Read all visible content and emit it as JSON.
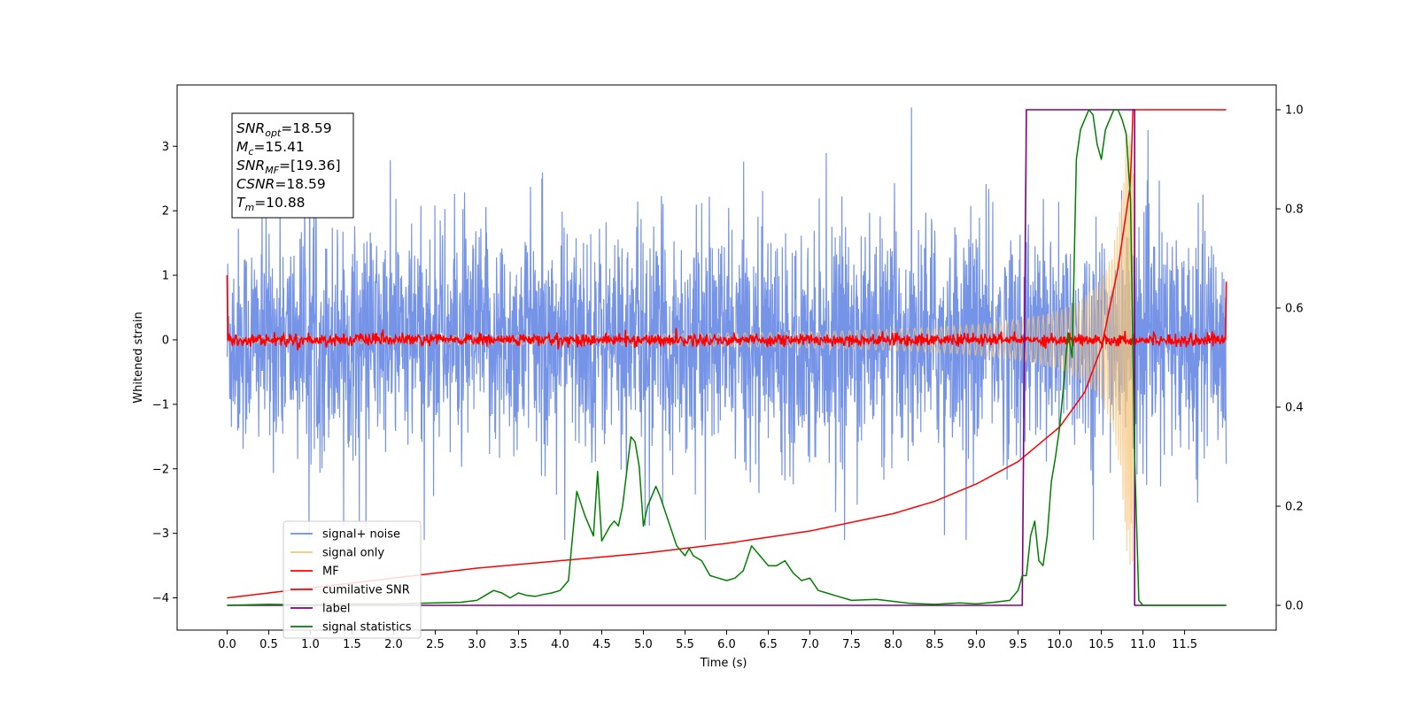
{
  "chart_data": {
    "type": "line",
    "xlabel": "Time (s)",
    "ylabel_left": "Whitened strain",
    "ylabel_right": "",
    "xlim": [
      -0.6,
      12.6
    ],
    "ylim_left": [
      -4.5,
      3.95
    ],
    "ylim_right": [
      -0.05,
      1.05
    ],
    "x_ticks": [
      "0.0",
      "0.5",
      "1.0",
      "1.5",
      "2.0",
      "2.5",
      "3.0",
      "3.5",
      "4.0",
      "4.5",
      "5.0",
      "5.5",
      "6.0",
      "6.5",
      "7.0",
      "7.5",
      "8.0",
      "8.5",
      "9.0",
      "9.5",
      "10.0",
      "10.5",
      "11.0",
      "11.5"
    ],
    "x_tick_values": [
      0,
      0.5,
      1,
      1.5,
      2,
      2.5,
      3,
      3.5,
      4,
      4.5,
      5,
      5.5,
      6,
      6.5,
      7,
      7.5,
      8,
      8.5,
      9,
      9.5,
      10,
      10.5,
      11,
      11.5
    ],
    "y_ticks_left": [
      -4,
      -3,
      -2,
      -1,
      0,
      1,
      2,
      3
    ],
    "y_ticks_right": [
      0.0,
      0.2,
      0.4,
      0.6,
      0.8,
      1.0
    ],
    "y_ticks_right_labels": [
      "0.0",
      "0.2",
      "0.4",
      "0.6",
      "0.8",
      "1.0"
    ],
    "grid": false,
    "legend_position": "lower-left",
    "annotation": [
      {
        "sym": "SNR",
        "sub": "opt",
        "rest": "=18.59"
      },
      {
        "sym": "M",
        "sub": "c",
        "rest": "=15.41"
      },
      {
        "sym": "SNR",
        "sub": "MF",
        "rest": "=[19.36]"
      },
      {
        "sym": "CSNR",
        "sub": "",
        "rest": "=18.59"
      },
      {
        "sym": "T",
        "sub": "m",
        "rest": "=10.88"
      }
    ],
    "series": [
      {
        "name": "signal+ noise",
        "color": "#6f8ee6",
        "axis": "left",
        "description_values": {
          "x_range": [
            0,
            12.0
          ],
          "envelope_left_units": [
            -3.0,
            3.6
          ]
        }
      },
      {
        "name": "signal only",
        "color": "#f5c478",
        "axis": "left",
        "chirp": {
          "t_start": 0,
          "t_merger": 10.9,
          "amp_start": 0.05,
          "amp_merger": 3.5,
          "end_amp": 0
        }
      },
      {
        "name": "MF",
        "color": "#ff0000",
        "axis": "left",
        "description_values": {
          "x_range": [
            0,
            12.0
          ],
          "noise_amp": 0.08,
          "edge_values": [
            1.0,
            0.9
          ]
        }
      },
      {
        "name": "cumilative SNR",
        "color": "#ff0000",
        "axis": "right",
        "x": [
          0.0,
          1.0,
          2.0,
          3.0,
          4.0,
          5.0,
          6.0,
          7.0,
          8.0,
          8.5,
          9.0,
          9.5,
          10.0,
          10.3,
          10.5,
          10.7,
          10.85,
          10.88,
          12.0
        ],
        "y": [
          0.015,
          0.035,
          0.055,
          0.075,
          0.09,
          0.105,
          0.125,
          0.15,
          0.185,
          0.21,
          0.245,
          0.29,
          0.36,
          0.43,
          0.52,
          0.68,
          0.85,
          1.0,
          1.0
        ]
      },
      {
        "name": "label",
        "color": "#800080",
        "axis": "right",
        "x": [
          0.0,
          9.55,
          9.6,
          10.9,
          10.9,
          11.0,
          12.0
        ],
        "y": [
          0.0,
          0.0,
          1.0,
          1.0,
          0.0,
          0.0,
          0.0
        ]
      },
      {
        "name": "signal statistics",
        "color": "#008000",
        "axis": "right",
        "x": [
          0.0,
          0.5,
          1.0,
          1.5,
          2.0,
          2.5,
          2.8,
          3.0,
          3.1,
          3.2,
          3.3,
          3.4,
          3.5,
          3.6,
          3.7,
          3.8,
          3.9,
          4.0,
          4.1,
          4.2,
          4.3,
          4.4,
          4.45,
          4.5,
          4.6,
          4.65,
          4.7,
          4.75,
          4.8,
          4.85,
          4.9,
          4.95,
          5.0,
          5.05,
          5.1,
          5.15,
          5.2,
          5.3,
          5.4,
          5.5,
          5.55,
          5.6,
          5.7,
          5.8,
          5.9,
          6.0,
          6.1,
          6.2,
          6.3,
          6.4,
          6.5,
          6.6,
          6.7,
          6.8,
          6.9,
          7.0,
          7.1,
          7.2,
          7.3,
          7.5,
          7.8,
          8.0,
          8.2,
          8.5,
          8.8,
          9.0,
          9.2,
          9.4,
          9.5,
          9.55,
          9.6,
          9.65,
          9.7,
          9.75,
          9.8,
          9.85,
          9.9,
          9.95,
          10.0,
          10.05,
          10.1,
          10.15,
          10.2,
          10.25,
          10.3,
          10.35,
          10.4,
          10.45,
          10.5,
          10.55,
          10.6,
          10.65,
          10.7,
          10.75,
          10.8,
          10.85,
          10.9,
          10.95,
          11.0,
          11.5,
          12.0
        ],
        "y": [
          0.0,
          0.002,
          0.001,
          0.003,
          0.003,
          0.005,
          0.006,
          0.01,
          0.02,
          0.03,
          0.025,
          0.015,
          0.025,
          0.02,
          0.018,
          0.022,
          0.025,
          0.03,
          0.05,
          0.23,
          0.18,
          0.14,
          0.27,
          0.13,
          0.16,
          0.17,
          0.16,
          0.2,
          0.27,
          0.34,
          0.33,
          0.28,
          0.16,
          0.2,
          0.22,
          0.24,
          0.22,
          0.17,
          0.12,
          0.1,
          0.115,
          0.1,
          0.09,
          0.06,
          0.055,
          0.05,
          0.055,
          0.07,
          0.12,
          0.1,
          0.08,
          0.08,
          0.09,
          0.065,
          0.05,
          0.055,
          0.03,
          0.025,
          0.02,
          0.01,
          0.012,
          0.008,
          0.004,
          0.002,
          0.005,
          0.003,
          0.006,
          0.01,
          0.03,
          0.06,
          0.06,
          0.14,
          0.17,
          0.09,
          0.08,
          0.14,
          0.25,
          0.3,
          0.36,
          0.45,
          0.55,
          0.5,
          0.9,
          0.96,
          0.98,
          1.0,
          0.99,
          0.93,
          0.9,
          0.96,
          0.98,
          1.0,
          1.0,
          0.98,
          0.95,
          0.82,
          0.3,
          0.01,
          0.0,
          0.0,
          0.0
        ]
      }
    ]
  }
}
